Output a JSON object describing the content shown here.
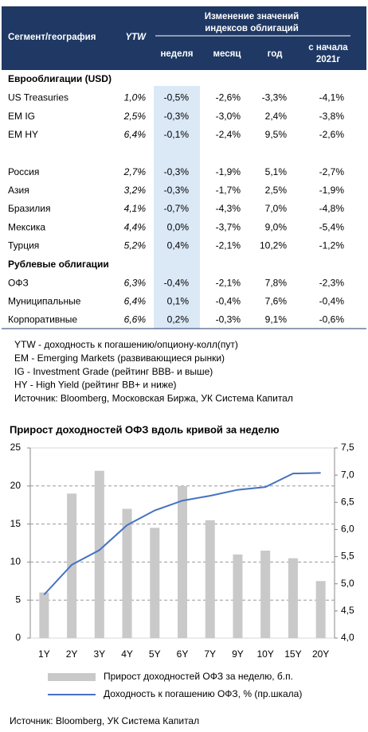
{
  "table": {
    "headers": {
      "segment": "Сегмент/география",
      "ytw": "YTW",
      "group": [
        "Изменение значений",
        "индексов облигаций"
      ],
      "columns": [
        [
          "неделя"
        ],
        [
          "месяц"
        ],
        [
          "год"
        ],
        [
          "с начала",
          "2021г"
        ]
      ]
    },
    "sections": [
      {
        "title": "Еврооблигации (USD)",
        "rows": [
          [
            "US Treasuries",
            "1,0%",
            "-0,5%",
            "-2,6%",
            "-3,3%",
            "-4,1%"
          ],
          [
            "EM IG",
            "2,5%",
            "-0,3%",
            "-3,0%",
            "2,4%",
            "-3,8%"
          ],
          [
            "EM HY",
            "6,4%",
            "-0,1%",
            "-2,4%",
            "9,5%",
            "-2,6%"
          ]
        ]
      },
      {
        "rows": [
          [
            "Россия",
            "2,7%",
            "-0,3%",
            "-1,9%",
            "5,1%",
            "-2,7%"
          ],
          [
            "Азия",
            "3,2%",
            "-0,3%",
            "-1,7%",
            "2,5%",
            "-1,9%"
          ],
          [
            "Бразилия",
            "4,1%",
            "-0,7%",
            "-4,3%",
            "7,0%",
            "-4,8%"
          ],
          [
            "Мексика",
            "4,4%",
            "0,0%",
            "-3,7%",
            "9,0%",
            "-5,4%"
          ],
          [
            "Турция",
            "5,2%",
            "0,4%",
            "-2,1%",
            "10,2%",
            "-1,2%"
          ]
        ]
      },
      {
        "title": "Рублевые облигации",
        "rows": [
          [
            "ОФЗ",
            "6,3%",
            "-0,4%",
            "-2,1%",
            "7,8%",
            "-2,3%"
          ],
          [
            "Муниципальные",
            "6,4%",
            "0,1%",
            "-0,4%",
            "7,6%",
            "-0,4%"
          ],
          [
            "Корпоративные",
            "6,6%",
            "0,2%",
            "-0,3%",
            "9,1%",
            "-0,6%"
          ]
        ]
      }
    ]
  },
  "notes": [
    "YTW - доходность к погашению/опциону-колл(пут)",
    "EM - Emerging Markets (развивающиеся рынки)",
    "IG - Investment Grade (рейтинг BBB- и выше)",
    "HY - High Yield (рейтинг BB+ и ниже)",
    "Источник: Bloomberg, Московская Биржа, УК Система Капитал"
  ],
  "chart_data": {
    "type": "bar-line",
    "title": "Прирост доходностей ОФЗ вдоль кривой за неделю",
    "categories": [
      "1Y",
      "2Y",
      "3Y",
      "4Y",
      "5Y",
      "6Y",
      "7Y",
      "9Y",
      "10Y",
      "15Y",
      "20Y"
    ],
    "series": [
      {
        "name": "Прирост доходностей ОФЗ за неделю, б.п.",
        "type": "bar",
        "color": "#c9c9c9",
        "values": [
          6,
          19,
          22,
          17,
          14.5,
          20,
          15.5,
          11,
          11.5,
          10.5,
          7.5
        ]
      },
      {
        "name": "Доходность к погашению ОФЗ, % (пр.шкала)",
        "type": "line",
        "axis": "y2",
        "color": "#4472c4",
        "values": [
          4.8,
          5.35,
          5.62,
          6.08,
          6.35,
          6.53,
          6.62,
          6.73,
          6.78,
          7.03,
          7.04
        ]
      }
    ],
    "ylim": [
      0,
      25
    ],
    "yticks": [
      0,
      5,
      10,
      15,
      20,
      25
    ],
    "y2lim": [
      4,
      7.5
    ],
    "y2ticks": [
      {
        "value": 4,
        "label": "4,0"
      },
      {
        "value": 4.5,
        "label": "4,5"
      },
      {
        "value": 5,
        "label": "5,0"
      },
      {
        "value": 5.5,
        "label": "5,5"
      },
      {
        "value": 6,
        "label": "6,0"
      },
      {
        "value": 6.5,
        "label": "6,5"
      },
      {
        "value": 7,
        "label": "7,0"
      },
      {
        "value": 7.5,
        "label": "7,5"
      }
    ],
    "grid": true
  },
  "source": "Источник: Bloomberg, УК Система Капитал"
}
